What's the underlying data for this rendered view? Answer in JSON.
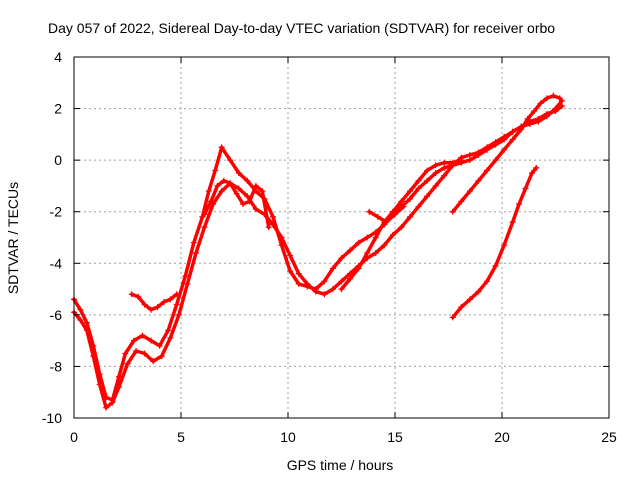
{
  "chart_data": {
    "type": "scatter",
    "title": "Day 057 of 2022, Sidereal Day-to-day VTEC variation (SDTVAR) for receiver orbo",
    "xlabel": "GPS time / hours",
    "ylabel": "SDTVAR / TECUs",
    "xlim": [
      0,
      25
    ],
    "ylim": [
      -10,
      4
    ],
    "xticks": [
      0,
      5,
      10,
      15,
      20,
      25
    ],
    "yticks": [
      -10,
      -8,
      -6,
      -4,
      -2,
      0,
      2,
      4
    ],
    "grid": true,
    "marker": "plus",
    "color": "#ff0000",
    "series": [
      {
        "x": [
          0,
          0.3,
          0.6,
          0.9,
          1.2,
          1.5,
          1.8,
          2.1,
          2.4,
          2.8,
          3.2,
          3.6,
          4.0,
          4.4,
          4.8,
          5.2,
          5.6,
          6.0,
          6.3,
          6.6,
          6.9,
          7.3,
          7.7,
          8.1,
          8.5,
          8.9,
          9.3,
          9.7,
          10.1,
          10.5,
          10.9,
          11.3,
          11.7,
          12.1,
          12.5,
          12.9,
          13.3,
          13.7,
          14.1,
          14.5,
          14.9,
          15.3,
          15.7,
          16.1,
          16.5,
          16.9,
          17.3,
          17.7,
          18.1,
          18.5,
          18.9,
          19.3,
          19.7,
          20.1,
          20.5,
          20.9,
          21.3,
          21.7,
          22.1,
          22.5,
          22.8
        ],
        "y": [
          -5.4,
          -5.8,
          -6.3,
          -7.2,
          -8.3,
          -9.2,
          -9.3,
          -8.4,
          -7.5,
          -7.0,
          -6.8,
          -7.0,
          -7.2,
          -6.6,
          -5.6,
          -4.5,
          -3.2,
          -2.2,
          -1.2,
          -0.4,
          0.5,
          0.0,
          -0.5,
          -0.8,
          -1.2,
          -1.5,
          -2.2,
          -3.3,
          -4.3,
          -4.8,
          -4.9,
          -5.0,
          -4.7,
          -4.2,
          -3.8,
          -3.5,
          -3.2,
          -3.0,
          -2.8,
          -2.5,
          -2.1,
          -1.8,
          -1.5,
          -1.1,
          -0.8,
          -0.5,
          -0.3,
          -0.2,
          -0.1,
          0.0,
          0.2,
          0.4,
          0.6,
          0.8,
          1.1,
          1.3,
          1.4,
          1.5,
          1.7,
          2.0,
          2.3
        ]
      },
      {
        "x": [
          0,
          0.3,
          0.6,
          0.9,
          1.2,
          1.5,
          1.8,
          2.1,
          2.5,
          2.9,
          3.3,
          3.7,
          4.1,
          4.5,
          4.9,
          5.3,
          5.7,
          6.1,
          6.5,
          6.9,
          7.3,
          7.7,
          8.1,
          8.5,
          8.9,
          9.3,
          9.7,
          10.1,
          10.5,
          10.9,
          11.3,
          11.7,
          12.1,
          12.5,
          12.9,
          13.3,
          13.7,
          14.1,
          14.5,
          14.9,
          15.3,
          15.7,
          16.1,
          16.5,
          16.9,
          17.3,
          17.7,
          18.1,
          18.5,
          18.9,
          19.3,
          19.7,
          20.1,
          20.5,
          20.9,
          21.3,
          21.7,
          22.1,
          22.5,
          22.8
        ],
        "y": [
          -5.9,
          -6.2,
          -6.6,
          -7.6,
          -8.7,
          -9.6,
          -9.4,
          -8.8,
          -7.9,
          -7.4,
          -7.5,
          -7.8,
          -7.6,
          -6.9,
          -6.0,
          -4.8,
          -3.6,
          -2.6,
          -1.7,
          -1.2,
          -0.9,
          -1.1,
          -1.4,
          -1.9,
          -2.1,
          -2.5,
          -3.0,
          -3.7,
          -4.4,
          -4.8,
          -5.1,
          -5.2,
          -5.0,
          -4.7,
          -4.4,
          -4.1,
          -3.8,
          -3.6,
          -3.3,
          -2.9,
          -2.6,
          -2.2,
          -1.8,
          -1.4,
          -1.0,
          -0.6,
          -0.2,
          0.1,
          0.2,
          0.3,
          0.5,
          0.7,
          0.9,
          1.1,
          1.3,
          1.5,
          1.6,
          1.8,
          1.9,
          2.1
        ]
      },
      {
        "x": [
          2.7,
          3.0,
          3.3,
          3.6,
          3.9,
          4.2,
          4.5,
          4.8
        ],
        "y": [
          -5.2,
          -5.3,
          -5.6,
          -5.8,
          -5.7,
          -5.5,
          -5.4,
          -5.2
        ]
      },
      {
        "x": [
          6.1,
          6.4,
          6.7,
          7.0,
          7.3,
          7.6,
          7.9,
          8.2,
          8.5,
          8.8,
          9.1
        ],
        "y": [
          -2.1,
          -1.6,
          -1.0,
          -0.8,
          -0.9,
          -1.3,
          -1.7,
          -1.6,
          -1.0,
          -1.2,
          -2.6
        ]
      },
      {
        "x": [
          12.5,
          12.9,
          13.3,
          13.7,
          14.1,
          14.5,
          14.9,
          15.3,
          15.7,
          16.1,
          16.5,
          16.9,
          17.3,
          17.7,
          18.1
        ],
        "y": [
          -5.0,
          -4.6,
          -4.2,
          -3.6,
          -3.0,
          -2.4,
          -2.0,
          -1.6,
          -1.2,
          -0.8,
          -0.4,
          -0.2,
          -0.1,
          -0.1,
          0.0
        ]
      },
      {
        "x": [
          13.8,
          14.2,
          14.6,
          15.0,
          15.4
        ],
        "y": [
          -2.0,
          -2.2,
          -2.4,
          -2.1,
          -1.8
        ]
      },
      {
        "x": [
          17.7,
          18.1,
          18.5,
          18.9,
          19.3,
          19.7,
          20.1,
          20.5,
          20.9,
          21.2,
          21.5,
          21.8,
          22.1,
          22.4,
          22.7
        ],
        "y": [
          -2.0,
          -1.6,
          -1.2,
          -0.8,
          -0.4,
          0.0,
          0.4,
          0.8,
          1.2,
          1.6,
          1.9,
          2.2,
          2.4,
          2.5,
          2.4
        ]
      },
      {
        "x": [
          17.7,
          18.1,
          18.5,
          18.9,
          19.3,
          19.7,
          20.1,
          20.5,
          20.8,
          21.1,
          21.4,
          21.6
        ],
        "y": [
          -6.1,
          -5.7,
          -5.4,
          -5.1,
          -4.7,
          -4.1,
          -3.3,
          -2.4,
          -1.7,
          -1.1,
          -0.5,
          -0.3
        ]
      }
    ]
  }
}
